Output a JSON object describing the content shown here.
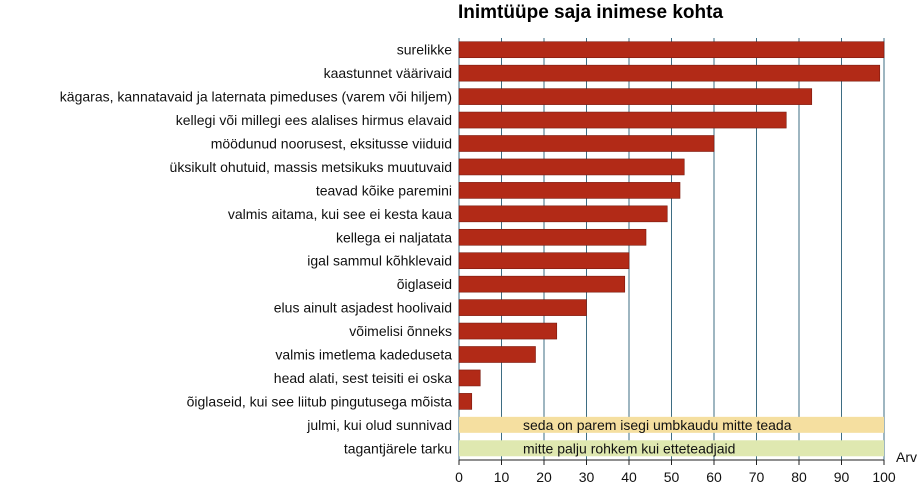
{
  "chart_data": {
    "type": "bar",
    "orientation": "horizontal",
    "title": "Inimtüüpe saja inimese kohta",
    "xlabel": "Arv",
    "ylabel": "",
    "xlim": [
      0,
      100
    ],
    "x_ticks": [
      0,
      10,
      20,
      30,
      40,
      50,
      60,
      70,
      80,
      90,
      100
    ],
    "grid": true,
    "colors": {
      "bar": "#b22a17",
      "bar_edge": "#7a1a0e",
      "grid": "#3d6d83",
      "note_yellow": "#f5dfa0",
      "note_green": "#dfe8b0"
    },
    "categories": [
      "surelikke",
      "kaastunnet väärivaid",
      "kägaras, kannatavaid ja laternata pimeduses (varem või hiljem)",
      "kellegi või millegi ees alalises hirmus elavaid",
      "möödunud noorusest, eksitusse viiduid",
      "üksikult ohutuid, massis metsikuks muutuvaid",
      "teavad kõike paremini",
      "valmis aitama, kui see ei kesta kaua",
      "kellega ei naljatata",
      "igal sammul kõhklevaid",
      "õiglaseid",
      "elus ainult asjadest hoolivaid",
      "võimelisi õnneks",
      "valmis imetlema kadeduseta",
      "head alati, sest teisiti ei oska",
      "õiglaseid, kui see liitub pingutusega mõista",
      "julmi, kui olud sunnivad",
      "tagantjärele tarku"
    ],
    "values": [
      100,
      99,
      83,
      77,
      60,
      53,
      52,
      49,
      44,
      40,
      39,
      30,
      23,
      18,
      5,
      3,
      null,
      null
    ],
    "notes": [
      {
        "category_index": 16,
        "text": "seda on parem isegi umbkaudu mitte teada"
      },
      {
        "category_index": 17,
        "text": "mitte palju rohkem kui etteteadjaid"
      }
    ]
  }
}
